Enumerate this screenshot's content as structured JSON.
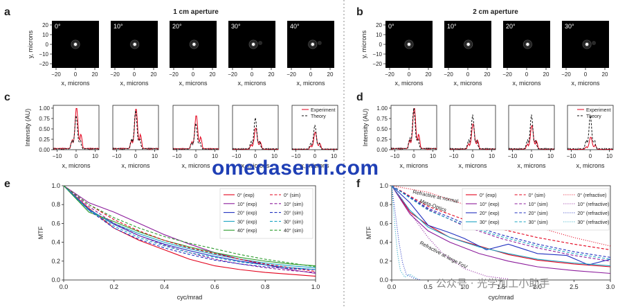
{
  "panels": {
    "a": {
      "label": "a",
      "title": "1 cm aperture",
      "angles": [
        "0°",
        "10°",
        "20°",
        "30°",
        "40°"
      ],
      "xlabel": "x, microns",
      "ylabel": "y, microns",
      "ticks": [
        "−20",
        "0",
        "20"
      ],
      "yticks": [
        "20",
        "10",
        "0",
        "−10",
        "−20"
      ]
    },
    "b": {
      "label": "b",
      "title": "2 cm aperture",
      "angles": [
        "0°",
        "10°",
        "20°",
        "30°"
      ],
      "xlabel": "x, microns",
      "ylabel": "y, microns",
      "ticks": [
        "−20",
        "0",
        "20"
      ],
      "yticks": [
        "20",
        "10",
        "0",
        "−10",
        "−20"
      ]
    },
    "c": {
      "label": "c",
      "ylabel": "Intensity (AU)",
      "xlabel": "x, microns",
      "xticks": [
        "−10",
        "0",
        "10"
      ],
      "yticks": [
        "1.00",
        "0.75",
        "0.50",
        "0.25",
        "0.00"
      ],
      "legend": [
        "Experiment",
        "Theory"
      ]
    },
    "d": {
      "label": "d",
      "ylabel": "Intensity (AU)",
      "xlabel": "x, microns",
      "xticks": [
        "−10",
        "0",
        "10"
      ],
      "yticks": [
        "1.00",
        "0.75",
        "0.50",
        "0.25",
        "0.00"
      ],
      "legend": [
        "Experiment",
        "Theory"
      ]
    },
    "e": {
      "label": "e"
    },
    "f": {
      "label": "f"
    }
  },
  "watermarks": {
    "site": "omedasemi.com",
    "wechat": "公众号 · 光学加工小助手"
  },
  "chart_data": [
    {
      "id": "e",
      "type": "line",
      "title": "",
      "xlabel": "cyc/mrad",
      "ylabel": "MTF",
      "xlim": [
        0,
        1.0
      ],
      "ylim": [
        0,
        1.0
      ],
      "xticks": [
        "0.0",
        "0.2",
        "0.4",
        "0.6",
        "0.8",
        "1.0"
      ],
      "yticks": [
        "0.0",
        "0.2",
        "0.4",
        "0.6",
        "0.8",
        "1.0"
      ],
      "legend_position": "top-right",
      "series": [
        {
          "name": "0° (exp)",
          "color": "#e3001b",
          "dash": "solid",
          "x": [
            0,
            0.1,
            0.2,
            0.3,
            0.4,
            0.5,
            0.6,
            0.7,
            0.8,
            0.9,
            1.0
          ],
          "y": [
            1.0,
            0.76,
            0.55,
            0.42,
            0.32,
            0.22,
            0.15,
            0.11,
            0.08,
            0.06,
            0.04
          ]
        },
        {
          "name": "10° (exp)",
          "color": "#8b1a9b",
          "dash": "solid",
          "x": [
            0,
            0.1,
            0.2,
            0.3,
            0.4,
            0.5,
            0.6,
            0.7,
            0.8,
            0.9,
            1.0
          ],
          "y": [
            1.0,
            0.82,
            0.72,
            0.6,
            0.48,
            0.38,
            0.29,
            0.22,
            0.16,
            0.11,
            0.07
          ]
        },
        {
          "name": "20° (exp)",
          "color": "#1f2fbf",
          "dash": "solid",
          "x": [
            0,
            0.1,
            0.2,
            0.3,
            0.4,
            0.5,
            0.6,
            0.7,
            0.8,
            0.9,
            1.0
          ],
          "y": [
            1.0,
            0.75,
            0.59,
            0.47,
            0.38,
            0.31,
            0.25,
            0.2,
            0.16,
            0.13,
            0.11
          ]
        },
        {
          "name": "30° (exp)",
          "color": "#1aa3c2",
          "dash": "solid",
          "x": [
            0,
            0.1,
            0.2,
            0.3,
            0.4,
            0.5,
            0.6,
            0.7,
            0.8,
            0.9,
            1.0
          ],
          "y": [
            1.0,
            0.74,
            0.6,
            0.49,
            0.4,
            0.33,
            0.27,
            0.22,
            0.18,
            0.15,
            0.13
          ]
        },
        {
          "name": "40° (exp)",
          "color": "#2a9a2a",
          "dash": "solid",
          "x": [
            0,
            0.1,
            0.2,
            0.3,
            0.4,
            0.5,
            0.6,
            0.7,
            0.8,
            0.9,
            1.0
          ],
          "y": [
            1.0,
            0.72,
            0.62,
            0.51,
            0.42,
            0.35,
            0.29,
            0.24,
            0.2,
            0.17,
            0.15
          ]
        },
        {
          "name": "0° (sim)",
          "color": "#e3001b",
          "dash": "dashed",
          "x": [
            0,
            0.1,
            0.2,
            0.3,
            0.4,
            0.5,
            0.6,
            0.7,
            0.8,
            0.9,
            1.0
          ],
          "y": [
            1.0,
            0.8,
            0.64,
            0.52,
            0.42,
            0.34,
            0.28,
            0.22,
            0.17,
            0.13,
            0.09
          ]
        },
        {
          "name": "10° (sim)",
          "color": "#8b1a9b",
          "dash": "dashed",
          "x": [
            0,
            0.1,
            0.2,
            0.3,
            0.4,
            0.5,
            0.6,
            0.7,
            0.8,
            0.9,
            1.0
          ],
          "y": [
            1.0,
            0.78,
            0.6,
            0.47,
            0.37,
            0.29,
            0.22,
            0.17,
            0.13,
            0.1,
            0.08
          ]
        },
        {
          "name": "20° (sim)",
          "color": "#1f2fbf",
          "dash": "dashed",
          "x": [
            0,
            0.1,
            0.2,
            0.3,
            0.4,
            0.5,
            0.6,
            0.7,
            0.8,
            0.9,
            1.0
          ],
          "y": [
            1.0,
            0.74,
            0.55,
            0.43,
            0.34,
            0.27,
            0.21,
            0.17,
            0.14,
            0.12,
            0.11
          ]
        },
        {
          "name": "30° (sim)",
          "color": "#1aa3c2",
          "dash": "dashed",
          "x": [
            0,
            0.1,
            0.2,
            0.3,
            0.4,
            0.5,
            0.6,
            0.7,
            0.8,
            0.9,
            1.0
          ],
          "y": [
            1.0,
            0.75,
            0.57,
            0.45,
            0.36,
            0.29,
            0.24,
            0.19,
            0.16,
            0.13,
            0.11
          ]
        },
        {
          "name": "40° (sim)",
          "color": "#2a9a2a",
          "dash": "dashed",
          "x": [
            0,
            0.1,
            0.2,
            0.3,
            0.4,
            0.5,
            0.6,
            0.7,
            0.8,
            0.9,
            1.0
          ],
          "y": [
            1.0,
            0.8,
            0.66,
            0.55,
            0.46,
            0.39,
            0.33,
            0.27,
            0.22,
            0.18,
            0.14
          ]
        }
      ]
    },
    {
      "id": "f",
      "type": "line",
      "title": "",
      "xlabel": "cyc/mrad",
      "ylabel": "MTF",
      "xlim": [
        0,
        3.0
      ],
      "ylim": [
        0,
        1.0
      ],
      "xticks": [
        "0.0",
        "0.5",
        "1.0",
        "1.5",
        "2.0",
        "2.5",
        "3.0"
      ],
      "yticks": [
        "0.0",
        "0.2",
        "0.4",
        "0.6",
        "0.8",
        "1.0"
      ],
      "legend_position": "top-right",
      "annotations": [
        "Refractive at normal",
        "Meta-Optics",
        "Refractive at large FoV"
      ],
      "series": [
        {
          "name": "0° (exp)",
          "color": "#e3001b",
          "dash": "solid",
          "x": [
            0,
            0.25,
            0.5,
            0.8,
            1.2,
            1.6,
            2.0,
            2.5,
            3.0
          ],
          "y": [
            1.0,
            0.72,
            0.58,
            0.45,
            0.36,
            0.27,
            0.21,
            0.17,
            0.14
          ]
        },
        {
          "name": "10° (exp)",
          "color": "#8b1a9b",
          "dash": "solid",
          "x": [
            0,
            0.25,
            0.5,
            0.8,
            1.2,
            1.6,
            2.0,
            2.5,
            3.0
          ],
          "y": [
            1.0,
            0.7,
            0.52,
            0.4,
            0.28,
            0.2,
            0.14,
            0.1,
            0.07
          ]
        },
        {
          "name": "20° (exp)",
          "color": "#1f2fbf",
          "dash": "solid",
          "x": [
            0,
            0.25,
            0.5,
            0.8,
            1.0,
            1.3,
            1.6,
            2.0,
            2.4,
            2.7,
            3.0
          ],
          "y": [
            1.0,
            0.82,
            0.58,
            0.5,
            0.44,
            0.32,
            0.38,
            0.28,
            0.26,
            0.16,
            0.22
          ]
        },
        {
          "name": "30° (exp)",
          "color": "#1aa3c2",
          "dash": "solid",
          "x": [
            0,
            0.25,
            0.5,
            0.8,
            1.2,
            1.6,
            2.0,
            2.5,
            3.0
          ],
          "y": [
            1.0,
            0.74,
            0.56,
            0.45,
            0.35,
            0.28,
            0.22,
            0.18,
            0.15
          ]
        },
        {
          "name": "0° (sim)",
          "color": "#e3001b",
          "dash": "dashed",
          "x": [
            0,
            0.5,
            1.0,
            1.5,
            2.0,
            2.5,
            3.0
          ],
          "y": [
            1.0,
            0.78,
            0.64,
            0.54,
            0.45,
            0.38,
            0.32
          ]
        },
        {
          "name": "10° (sim)",
          "color": "#8b1a9b",
          "dash": "dashed",
          "x": [
            0,
            0.5,
            1.0,
            1.5,
            2.0,
            2.5,
            3.0
          ],
          "y": [
            1.0,
            0.75,
            0.57,
            0.44,
            0.34,
            0.26,
            0.2
          ]
        },
        {
          "name": "20° (sim)",
          "color": "#1f2fbf",
          "dash": "dashed",
          "x": [
            0,
            0.5,
            1.0,
            1.5,
            2.0,
            2.5,
            3.0
          ],
          "y": [
            1.0,
            0.76,
            0.6,
            0.48,
            0.38,
            0.3,
            0.24
          ]
        },
        {
          "name": "30° (sim)",
          "color": "#1aa3c2",
          "dash": "dashed",
          "x": [
            0,
            0.5,
            1.0,
            1.5,
            2.0,
            2.5,
            3.0
          ],
          "y": [
            1.0,
            0.74,
            0.58,
            0.46,
            0.36,
            0.28,
            0.22
          ]
        },
        {
          "name": "0° (refractive)",
          "color": "#e3001b",
          "dash": "dotted",
          "x": [
            0,
            0.5,
            1.0,
            1.5,
            2.0,
            2.5,
            3.0
          ],
          "y": [
            1.0,
            0.93,
            0.8,
            0.68,
            0.56,
            0.45,
            0.36
          ]
        },
        {
          "name": "10° (refractive)",
          "color": "#8b1a9b",
          "dash": "dotted",
          "x": [
            0,
            0.15,
            0.3,
            0.5,
            0.7,
            1.0,
            1.3,
            1.6
          ],
          "y": [
            1.0,
            0.85,
            0.66,
            0.45,
            0.28,
            0.12,
            0.04,
            0.01
          ]
        },
        {
          "name": "20° (refractive)",
          "color": "#1f2fbf",
          "dash": "dotted",
          "x": [
            0,
            0.05,
            0.1,
            0.15,
            0.2,
            0.3,
            0.4
          ],
          "y": [
            1.0,
            0.7,
            0.4,
            0.18,
            0.06,
            0.02,
            0.0
          ]
        },
        {
          "name": "30° (refractive)",
          "color": "#1aa3c2",
          "dash": "dotted",
          "x": [
            0,
            0.04,
            0.08,
            0.12,
            0.18,
            0.25,
            0.35
          ],
          "y": [
            1.0,
            0.6,
            0.28,
            0.1,
            0.03,
            0.06,
            0.01
          ]
        }
      ]
    }
  ]
}
